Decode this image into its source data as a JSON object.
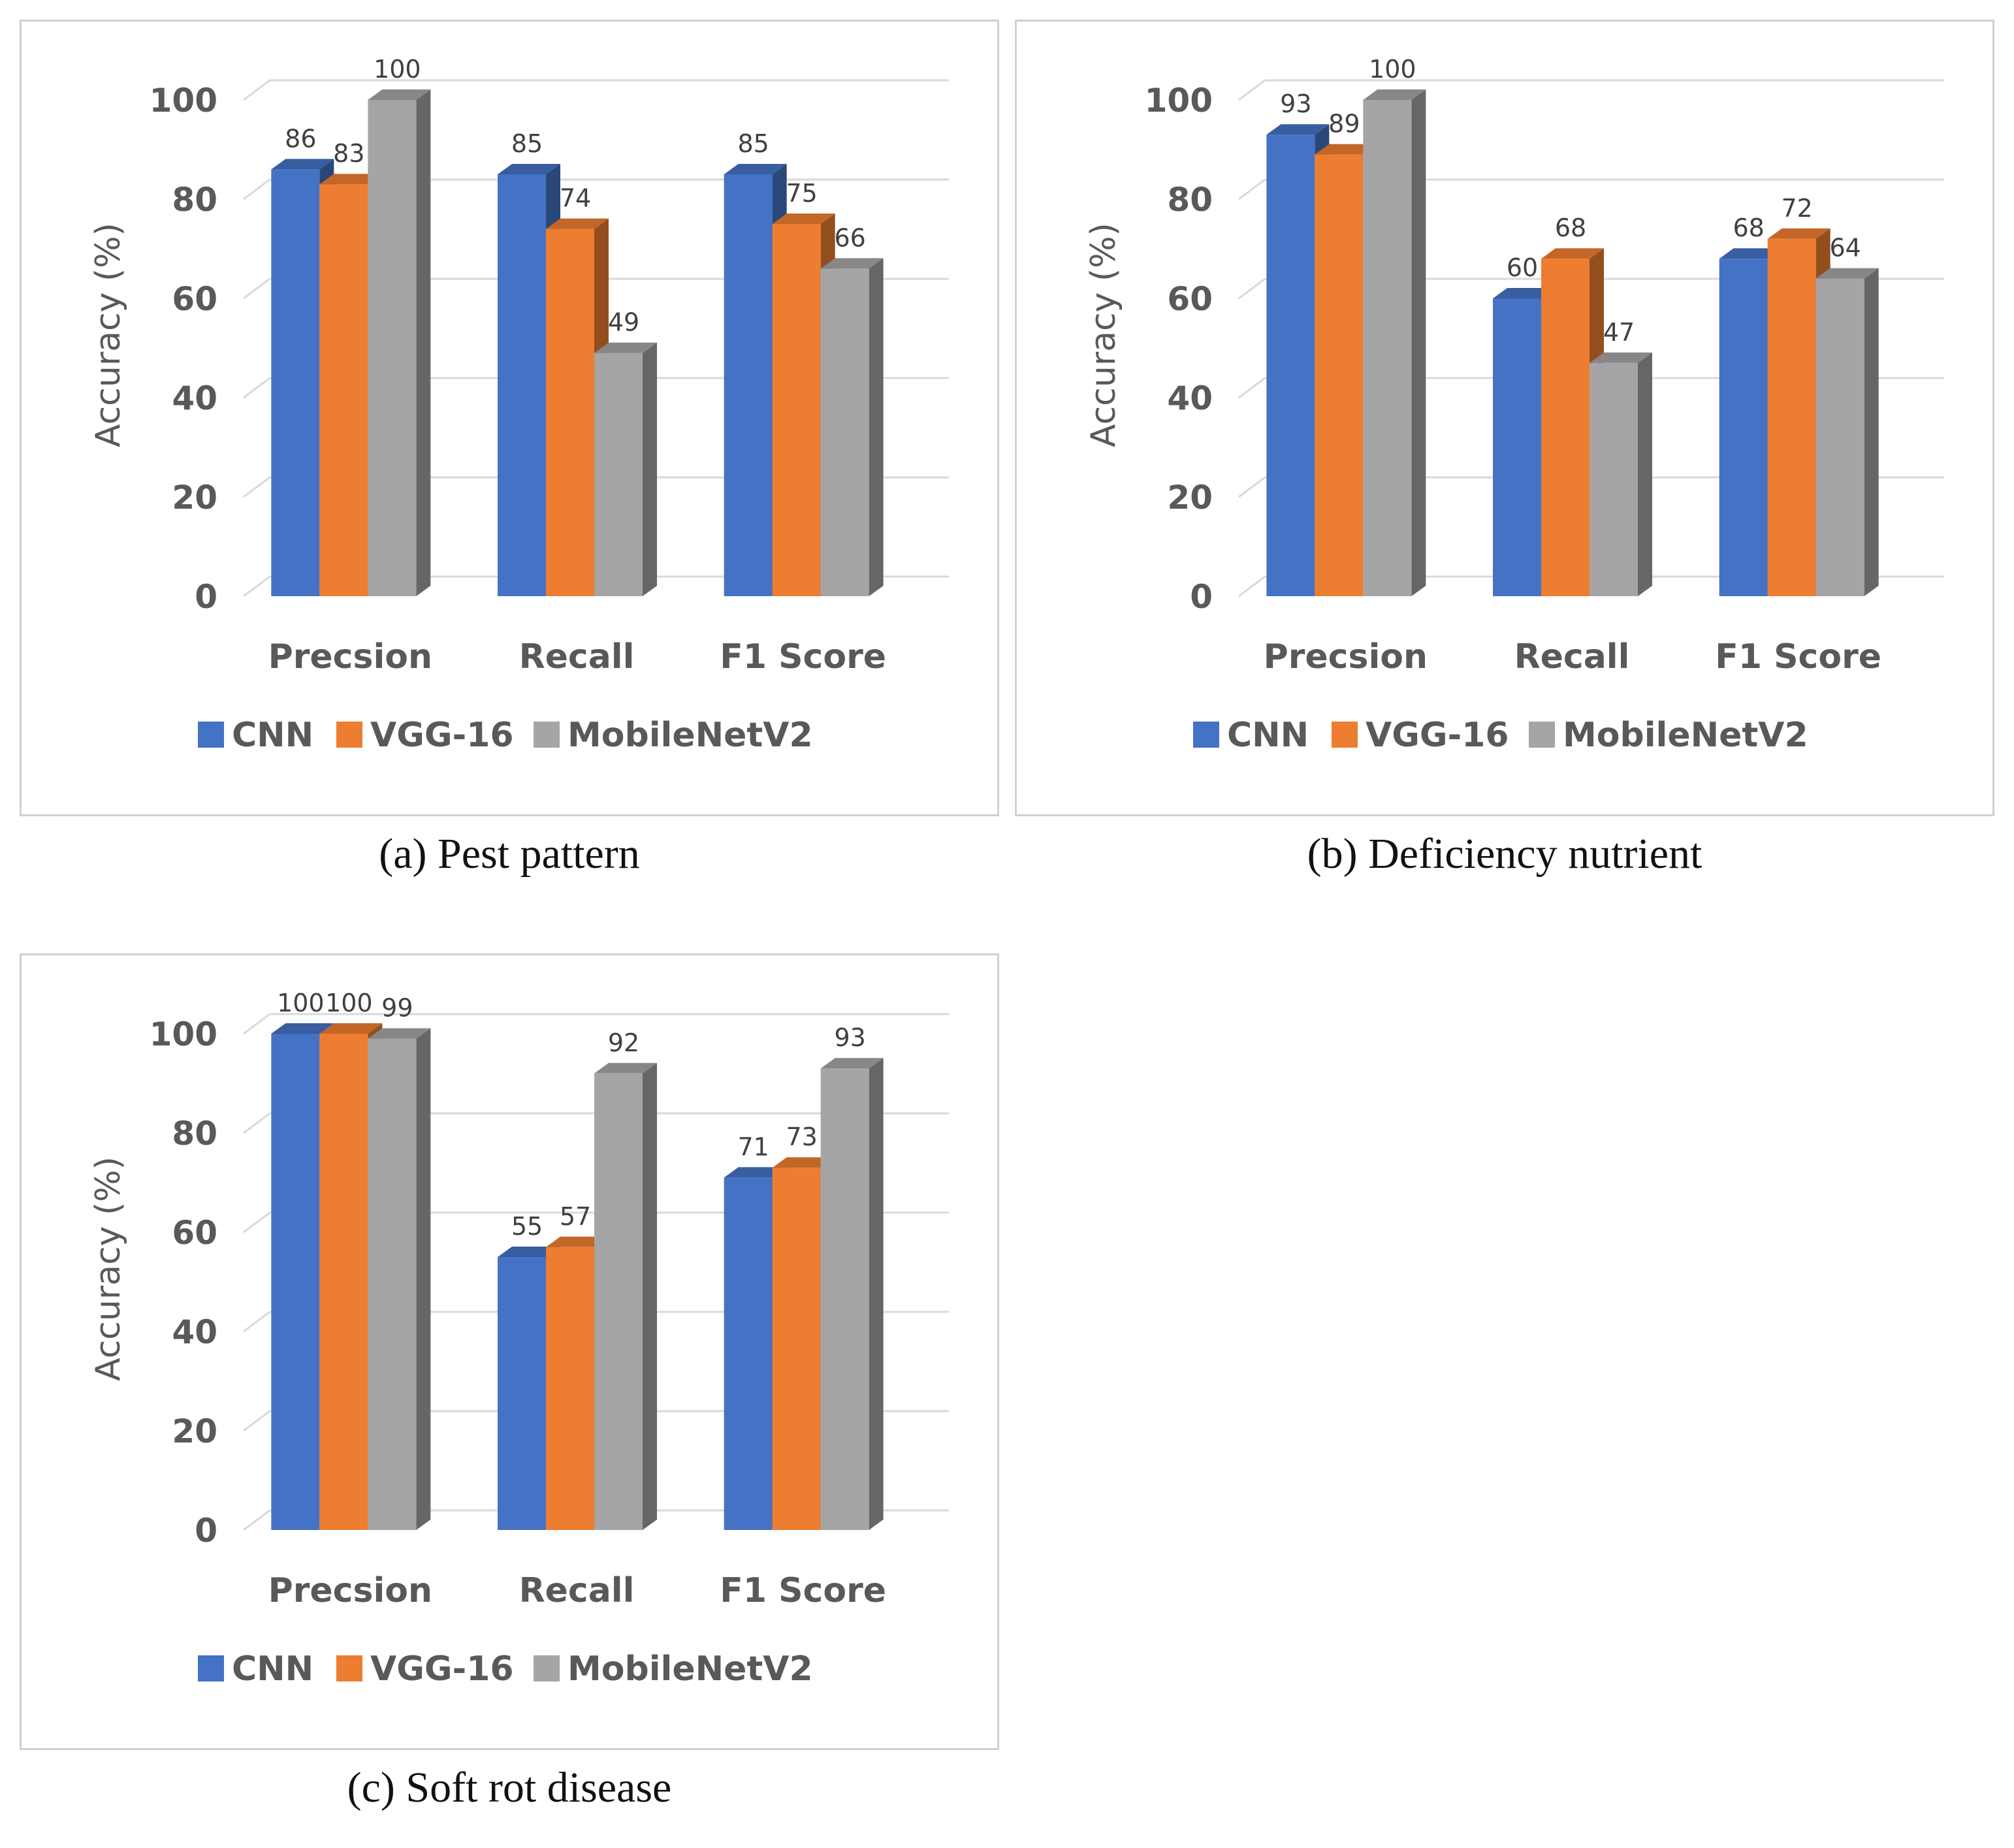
{
  "colors": {
    "CNN": "#4472c4",
    "VGG-16": "#ed7d31",
    "MobileNetV2": "#a5a5a5"
  },
  "chart_data": [
    {
      "type": "bar",
      "caption": "(a) Pest pattern",
      "ylabel": "Accuracy (%)",
      "ylim": [
        0,
        100
      ],
      "yticks": [
        0,
        20,
        40,
        60,
        80,
        100
      ],
      "categories": [
        "Precsion",
        "Recall",
        "F1 Score"
      ],
      "legend_position": "bottom",
      "series": [
        {
          "name": "CNN",
          "values": [
            86,
            85,
            85
          ]
        },
        {
          "name": "VGG-16",
          "values": [
            83,
            74,
            75
          ]
        },
        {
          "name": "MobileNetV2",
          "values": [
            100,
            49,
            66
          ]
        }
      ]
    },
    {
      "type": "bar",
      "caption": "(b) Deficiency nutrient",
      "ylabel": "Accuracy (%)",
      "ylim": [
        0,
        100
      ],
      "yticks": [
        0,
        20,
        40,
        60,
        80,
        100
      ],
      "categories": [
        "Precsion",
        "Recall",
        "F1 Score"
      ],
      "legend_position": "bottom",
      "series": [
        {
          "name": "CNN",
          "values": [
            93,
            60,
            68
          ]
        },
        {
          "name": "VGG-16",
          "values": [
            89,
            68,
            72
          ]
        },
        {
          "name": "MobileNetV2",
          "values": [
            100,
            47,
            64
          ]
        }
      ]
    },
    {
      "type": "bar",
      "caption": "(c) Soft rot disease",
      "ylabel": "Accuracy (%)",
      "ylim": [
        0,
        100
      ],
      "yticks": [
        0,
        20,
        40,
        60,
        80,
        100
      ],
      "categories": [
        "Precsion",
        "Recall",
        "F1 Score"
      ],
      "legend_position": "bottom",
      "series": [
        {
          "name": "CNN",
          "values": [
            100,
            55,
            71
          ]
        },
        {
          "name": "VGG-16",
          "values": [
            100,
            57,
            73
          ]
        },
        {
          "name": "MobileNetV2",
          "values": [
            99,
            92,
            93
          ]
        }
      ]
    }
  ]
}
